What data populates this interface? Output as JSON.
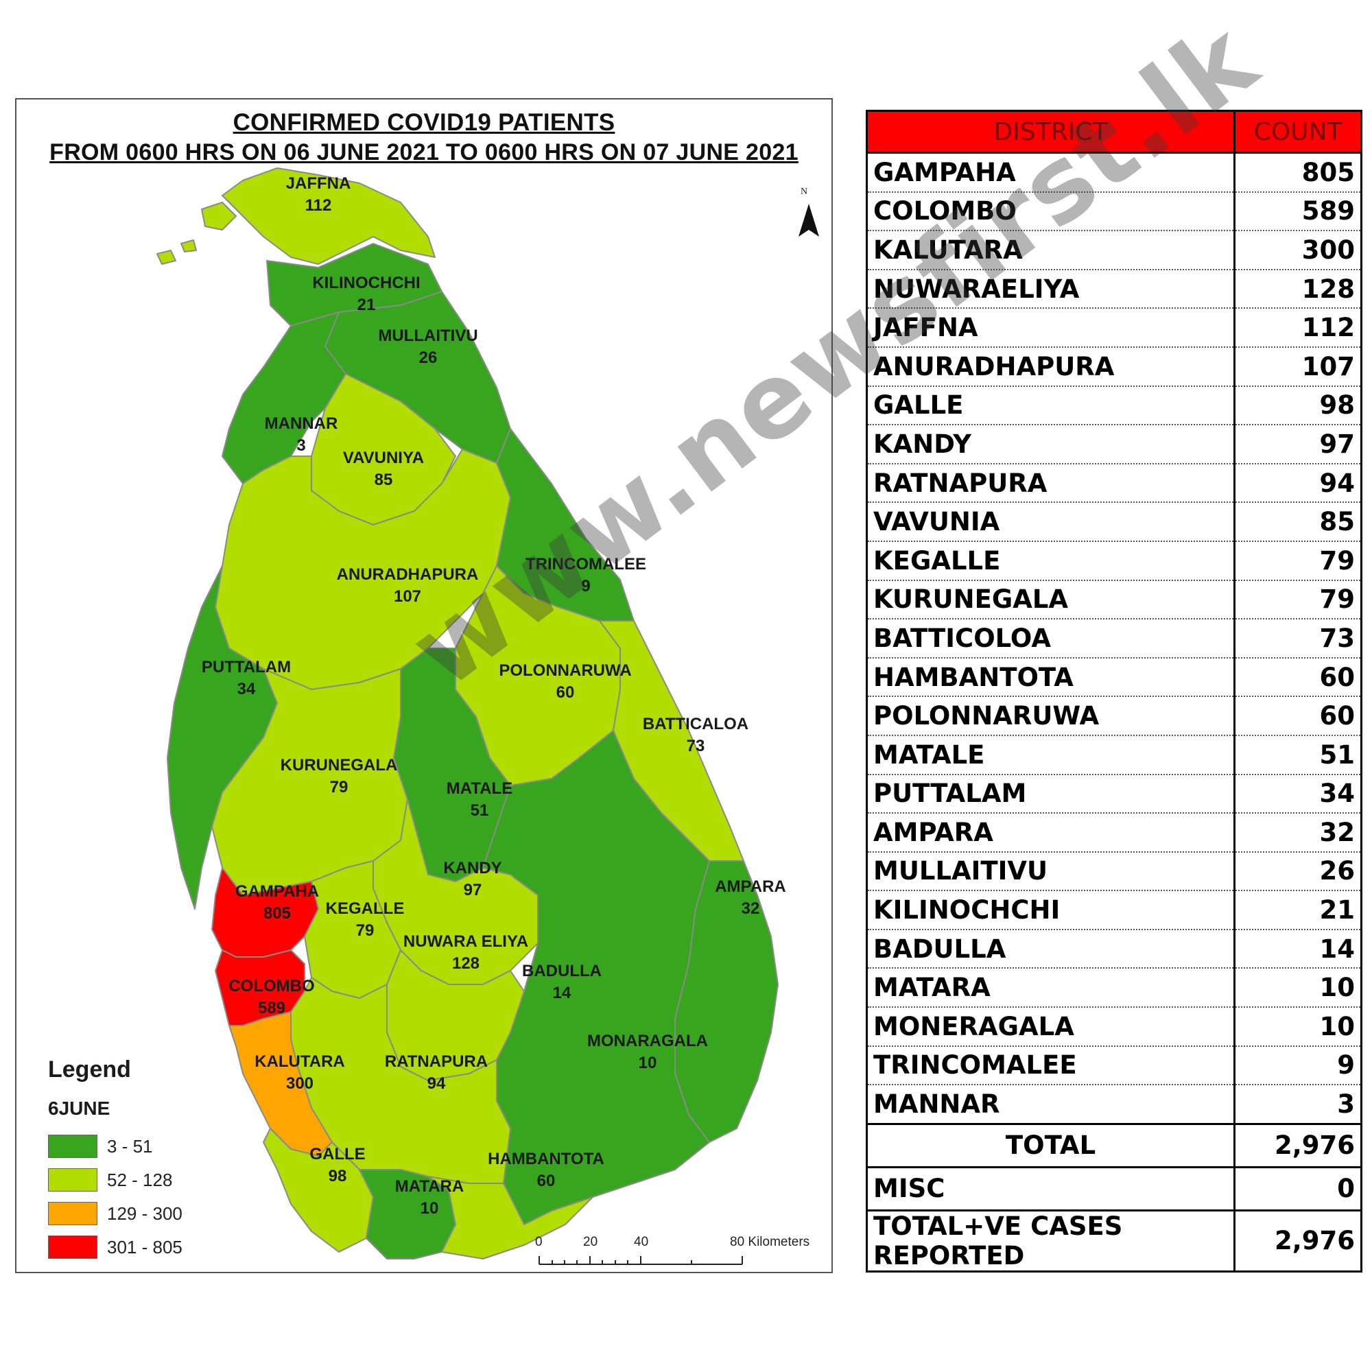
{
  "map": {
    "title_line1": "CONFIRMED COVID19 PATIENTS",
    "title_line2": "FROM 0600 HRS ON 06 JUNE 2021 TO 0600 HRS ON 07 JUNE 2021",
    "north_label": "N",
    "colors": {
      "low": "#38a51f",
      "mid": "#b1dd00",
      "high": "#ffa500",
      "max": "#ff0000",
      "sea": "#ffffff",
      "border": "#888888"
    },
    "districts": [
      {
        "name": "JAFFNA",
        "count": "112",
        "band": "52 - 128"
      },
      {
        "name": "KILINOCHCHI",
        "count": "21",
        "band": "3 - 51"
      },
      {
        "name": "MULLAITIVU",
        "count": "26",
        "band": "3 - 51"
      },
      {
        "name": "MANNAR",
        "count": "3",
        "band": "3 - 51"
      },
      {
        "name": "VAVUNIYA",
        "count": "85",
        "band": "52 - 128"
      },
      {
        "name": "ANURADHAPURA",
        "count": "107",
        "band": "52 - 128"
      },
      {
        "name": "TRINCOMALEE",
        "count": "9",
        "band": "3 - 51"
      },
      {
        "name": "PUTTALAM",
        "count": "34",
        "band": "3 - 51"
      },
      {
        "name": "POLONNARUWA",
        "count": "60",
        "band": "52 - 128"
      },
      {
        "name": "BATTICALOA",
        "count": "73",
        "band": "52 - 128"
      },
      {
        "name": "KURUNEGALA",
        "count": "79",
        "band": "52 - 128"
      },
      {
        "name": "MATALE",
        "count": "51",
        "band": "3 - 51"
      },
      {
        "name": "KANDY",
        "count": "97",
        "band": "52 - 128"
      },
      {
        "name": "AMPARA",
        "count": "32",
        "band": "3 - 51"
      },
      {
        "name": "GAMPAHA",
        "count": "805",
        "band": "301 - 805"
      },
      {
        "name": "KEGALLE",
        "count": "79",
        "band": "52 - 128"
      },
      {
        "name": "NUWARA ELIYA",
        "count": "128",
        "band": "52 - 128"
      },
      {
        "name": "BADULLA",
        "count": "14",
        "band": "3 - 51"
      },
      {
        "name": "COLOMBO",
        "count": "589",
        "band": "301 - 805"
      },
      {
        "name": "MONARAGALA",
        "count": "10",
        "band": "3 - 51"
      },
      {
        "name": "KALUTARA",
        "count": "300",
        "band": "129 - 300"
      },
      {
        "name": "RATNAPURA",
        "count": "94",
        "band": "52 - 128"
      },
      {
        "name": "GALLE",
        "count": "98",
        "band": "52 - 128"
      },
      {
        "name": "HAMBANTOTA",
        "count": "60",
        "band": "52 - 128"
      },
      {
        "name": "MATARA",
        "count": "10",
        "band": "3 - 51"
      }
    ],
    "legend": {
      "title": "Legend",
      "subtitle": "6JUNE",
      "items": [
        {
          "label": "3 - 51",
          "color": "#38a51f"
        },
        {
          "label": "52 - 128",
          "color": "#b1dd00"
        },
        {
          "label": "129 - 300",
          "color": "#ffa500"
        },
        {
          "label": "301 - 805",
          "color": "#ff0000"
        }
      ]
    },
    "scale": {
      "ticks": [
        "0",
        "20",
        "40",
        "80 Kilometers"
      ]
    }
  },
  "table": {
    "header": {
      "district": "DISTRICT",
      "count": "COUNT"
    },
    "rows": [
      {
        "district": "GAMPAHA",
        "count": "805"
      },
      {
        "district": "COLOMBO",
        "count": "589"
      },
      {
        "district": "KALUTARA",
        "count": "300"
      },
      {
        "district": "NUWARAELIYA",
        "count": "128"
      },
      {
        "district": "JAFFNA",
        "count": "112"
      },
      {
        "district": "ANURADHAPURA",
        "count": "107"
      },
      {
        "district": "GALLE",
        "count": "98"
      },
      {
        "district": "KANDY",
        "count": "97"
      },
      {
        "district": "RATNAPURA",
        "count": "94"
      },
      {
        "district": "VAVUNIA",
        "count": "85"
      },
      {
        "district": "KEGALLE",
        "count": "79"
      },
      {
        "district": "KURUNEGALA",
        "count": "79"
      },
      {
        "district": "BATTICOLOA",
        "count": "73"
      },
      {
        "district": "HAMBANTOTA",
        "count": "60"
      },
      {
        "district": "POLONNARUWA",
        "count": "60"
      },
      {
        "district": "MATALE",
        "count": "51"
      },
      {
        "district": "PUTTALAM",
        "count": "34"
      },
      {
        "district": "AMPARA",
        "count": "32"
      },
      {
        "district": "MULLAITIVU",
        "count": "26"
      },
      {
        "district": "KILINOCHCHI",
        "count": "21"
      },
      {
        "district": "BADULLA",
        "count": "14"
      },
      {
        "district": "MATARA",
        "count": "10"
      },
      {
        "district": "MONERAGALA",
        "count": "10"
      },
      {
        "district": "TRINCOMALEE",
        "count": "9"
      },
      {
        "district": "MANNAR",
        "count": "3"
      }
    ],
    "total_label": "TOTAL",
    "total_value": "2,976",
    "misc_label": "MISC",
    "misc_value": "0",
    "reported_label": "TOTAL+VE CASES REPORTED",
    "reported_value": "2,976"
  },
  "watermark": "www.newsfirst.lk"
}
